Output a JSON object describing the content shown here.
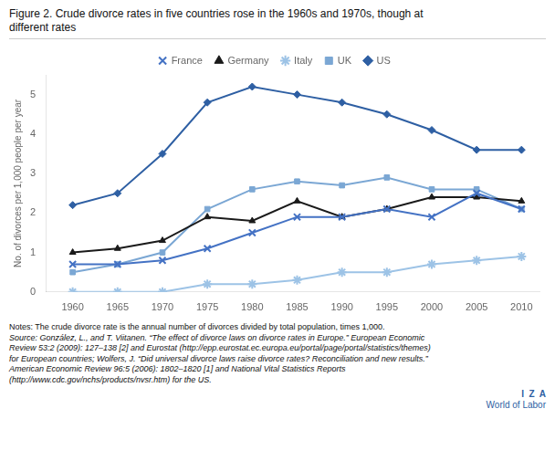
{
  "chart_data": {
    "type": "line",
    "title": [
      "Figure 2. Crude divorce rates in five countries rose in the 1960s and 1970s, though at",
      "different rates"
    ],
    "x": [
      1960,
      1965,
      1970,
      1975,
      1980,
      1985,
      1990,
      1995,
      2000,
      2005,
      2010
    ],
    "series": [
      {
        "name": "France",
        "color": "#4472C4",
        "marker": "x",
        "values": [
          0.7,
          0.7,
          0.8,
          1.1,
          1.5,
          1.9,
          1.9,
          2.1,
          1.9,
          2.5,
          2.1
        ]
      },
      {
        "name": "Germany",
        "color": "#1a1a1a",
        "marker": "triangle",
        "values": [
          1.0,
          1.1,
          1.3,
          1.9,
          1.8,
          2.3,
          1.9,
          2.1,
          2.4,
          2.4,
          2.3
        ]
      },
      {
        "name": "Italy",
        "color": "#9DC3E6",
        "marker": "star",
        "values": [
          0.0,
          0.0,
          0.0,
          0.2,
          0.2,
          0.3,
          0.5,
          0.5,
          0.7,
          0.8,
          0.9
        ]
      },
      {
        "name": "UK",
        "color": "#7BA7D4",
        "marker": "square",
        "values": [
          0.5,
          0.7,
          1.0,
          2.1,
          2.6,
          2.8,
          2.7,
          2.9,
          2.6,
          2.6,
          2.1
        ]
      },
      {
        "name": "US",
        "color": "#2E5FA3",
        "marker": "diamond",
        "values": [
          2.2,
          2.5,
          3.5,
          4.8,
          5.2,
          5.0,
          4.8,
          4.5,
          4.1,
          3.6,
          3.6
        ]
      }
    ],
    "xlim": [
      1957,
      2012
    ],
    "xticks": [
      1960,
      1965,
      1970,
      1975,
      1980,
      1985,
      1990,
      1995,
      2000,
      2005,
      2010
    ],
    "ylim": [
      0,
      5.5
    ],
    "yticks": [
      0,
      1,
      2,
      3,
      4,
      5
    ],
    "ylabel": "No. of divorces per 1,000 people per year",
    "grid": false,
    "legend": "top",
    "annotations": [
      "Notes: The crude divorce rate is the annual number of divorces divided by total population, times 1,000.",
      "Source: González, L., and T. Viitanen. “The effect of divorce laws on divorce rates in Europe.” European Economic",
      "Review 53:2 (2009): 127–138 [2] and Eurostat (http://epp.eurostat.ec.europa.eu/portal/page/portal/statistics/themes)",
      "for European countries; Wolfers, J. “Did universal divorce laws raise divorce rates? Reconciliation and new results.”",
      "American Economic Review 96:5 (2006): 1802–1820 [1] and National Vital Statistics Reports",
      "(http://www.cdc.gov/nchs/products/nvsr.htm) for the US.",
      "I  Z  A",
      "World of Labor"
    ]
  }
}
